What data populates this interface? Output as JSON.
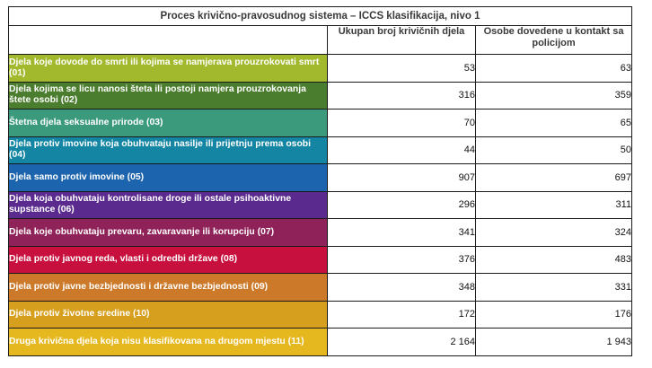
{
  "table": {
    "title": "Proces krivično-pravosudnog sistema – ICCS klasifikacija, nivo 1",
    "columns": [
      "",
      "Ukupan broj krivičnih djela",
      "Osobe dovedene u kontakt sa policijom"
    ],
    "rows": [
      {
        "label": "Djela koje dovode do smrti ili kojima se namjerava prouzrokovati smrt (01)",
        "offences": "53",
        "persons": "63",
        "color": "#a3b92d"
      },
      {
        "label": "Djela kojima se licu nanosi šteta ili postoji namjera prouzrokovanja štete osobi (02)",
        "offences": "316",
        "persons": "359",
        "color": "#4b7d2e"
      },
      {
        "label": "Štetna djela seksualne prirode (03)",
        "offences": "70",
        "persons": "65",
        "color": "#3b9a7c"
      },
      {
        "label": "Djela protiv imovine koja obuhvataju nasilje ili prijetnju prema osobi (04)",
        "offences": "44",
        "persons": "50",
        "color": "#1485a3"
      },
      {
        "label": "Djela samo protiv imovine (05)",
        "offences": "907",
        "persons": "697",
        "color": "#1c64ad"
      },
      {
        "label": "Djela koja obuhvataju kontrolisane droge ili ostale psihoaktivne supstance (06)",
        "offences": "296",
        "persons": "311",
        "color": "#5a2a8f"
      },
      {
        "label": "Djela  koje obuhvataju prevaru, zavaravanje ili korupciju (07)",
        "offences": "341",
        "persons": "324",
        "color": "#8f2258"
      },
      {
        "label": "Djela protiv javnog reda, vlasti i odredbi države (08)",
        "offences": "376",
        "persons": "483",
        "color": "#c8103e"
      },
      {
        "label": "Djela protiv javne bezbjednosti i državne bezbjednosti (09)",
        "offences": "348",
        "persons": "331",
        "color": "#cc7a2a"
      },
      {
        "label": "Djela protiv  životne sredine (10)",
        "offences": "172",
        "persons": "176",
        "color": "#d79f1e"
      },
      {
        "label": "Druga krivična djela koja nisu klasifikovana na drugom mjestu (11)",
        "offences": "2 164",
        "persons": "1 943",
        "color": "#e6b81f"
      }
    ]
  }
}
